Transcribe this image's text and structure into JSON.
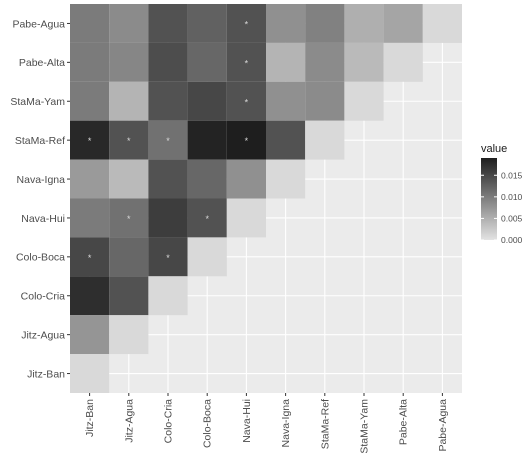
{
  "chart_data": {
    "type": "heatmap",
    "title": "",
    "xlabel": "",
    "ylabel": "",
    "x_categories": [
      "Jitz-Ban",
      "Jitz-Agua",
      "Colo-Cria",
      "Colo-Boca",
      "Nava-Hui",
      "Nava-Igna",
      "StaMa-Ref",
      "StaMa-Yam",
      "Pabe-Alta",
      "Pabe-Agua"
    ],
    "y_categories": [
      "Pabe-Agua",
      "Pabe-Alta",
      "StaMa-Yam",
      "StaMa-Ref",
      "Nava-Igna",
      "Nava-Hui",
      "Colo-Boca",
      "Colo-Cria",
      "Jitz-Agua",
      "Jitz-Ban"
    ],
    "values": [
      [
        0.01,
        0.0085,
        0.014,
        0.0125,
        0.014,
        0.008,
        0.0095,
        0.005,
        0.006,
        0.001
      ],
      [
        0.01,
        0.009,
        0.0145,
        0.012,
        0.014,
        0.0045,
        0.0085,
        0.004,
        0.001,
        null
      ],
      [
        0.01,
        0.0045,
        0.014,
        0.015,
        0.014,
        0.008,
        0.0085,
        0.001,
        null,
        null
      ],
      [
        0.018,
        0.014,
        0.011,
        0.0185,
        0.019,
        0.014,
        0.001,
        null,
        null,
        null
      ],
      [
        0.007,
        0.004,
        0.014,
        0.012,
        0.008,
        0.001,
        null,
        null,
        null,
        null
      ],
      [
        0.01,
        0.011,
        0.016,
        0.014,
        0.001,
        null,
        null,
        null,
        null,
        null
      ],
      [
        0.015,
        0.012,
        0.015,
        0.001,
        null,
        null,
        null,
        null,
        null,
        null
      ],
      [
        0.0175,
        0.014,
        0.001,
        null,
        null,
        null,
        null,
        null,
        null,
        null
      ],
      [
        0.0075,
        0.001,
        null,
        null,
        null,
        null,
        null,
        null,
        null,
        null
      ],
      [
        0.001,
        null,
        null,
        null,
        null,
        null,
        null,
        null,
        null,
        null
      ]
    ],
    "significant": [
      [
        false,
        false,
        false,
        false,
        true,
        false,
        false,
        false,
        false,
        false
      ],
      [
        false,
        false,
        false,
        false,
        true,
        false,
        false,
        false,
        false,
        false
      ],
      [
        false,
        false,
        false,
        false,
        true,
        false,
        false,
        false,
        false,
        false
      ],
      [
        true,
        true,
        true,
        false,
        true,
        false,
        false,
        false,
        false,
        false
      ],
      [
        false,
        false,
        false,
        false,
        false,
        false,
        false,
        false,
        false,
        false
      ],
      [
        false,
        true,
        false,
        true,
        false,
        false,
        false,
        false,
        false,
        false
      ],
      [
        true,
        false,
        true,
        false,
        false,
        false,
        false,
        false,
        false,
        false
      ],
      [
        false,
        false,
        false,
        false,
        false,
        false,
        false,
        false,
        false,
        false
      ],
      [
        false,
        false,
        false,
        false,
        false,
        false,
        false,
        false,
        false,
        false
      ],
      [
        false,
        false,
        false,
        false,
        false,
        false,
        false,
        false,
        false,
        false
      ]
    ],
    "significance_marker": "*",
    "color_scale": {
      "low": "#e3e3e3",
      "high": "#1e1e1e",
      "domain": [
        0,
        0.019
      ]
    },
    "legend": {
      "title": "value",
      "ticks": [
        0.015,
        0.01,
        0.005,
        0.0
      ],
      "tick_labels": [
        "0.015",
        "0.010",
        "0.005",
        "0.000"
      ],
      "position": "right"
    },
    "panel_background": "#ebebeb",
    "grid_color": "#ffffff",
    "grid": true
  }
}
